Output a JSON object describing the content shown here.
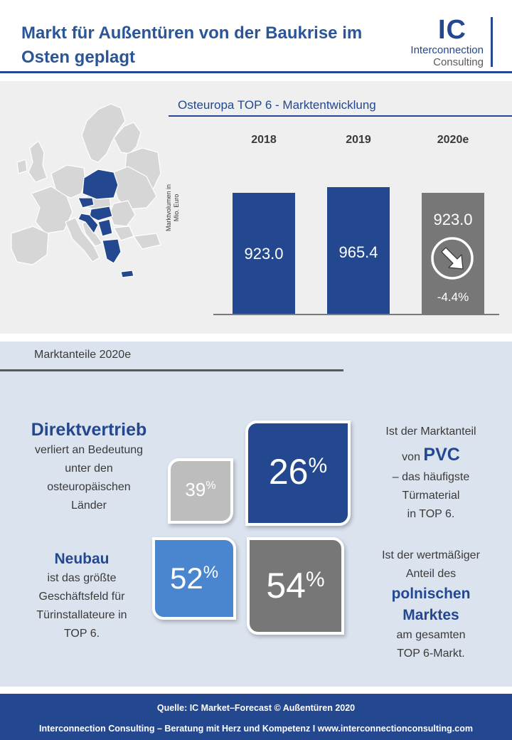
{
  "header": {
    "title": "Markt für Außentüren von der Baukrise im Osten geplagt",
    "logo_mark": "IC",
    "logo_line1": "Interconnection",
    "logo_line2": "Consulting"
  },
  "market_development": {
    "title": "Osteuropa TOP 6 - Marktentwicklung",
    "y_label": "Marktvolumen in Mio. Euro",
    "trend_icon": "arrow-down-right-icon",
    "change_label": "-4.4%"
  },
  "chart_data": {
    "type": "bar",
    "title": "Osteuropa TOP 6 - Marktentwicklung",
    "ylabel": "Marktvolumen in Mio. Euro",
    "categories": [
      "2018",
      "2019",
      "2020e"
    ],
    "values": [
      923.0,
      965.4,
      923.0
    ],
    "value_labels": [
      "923.0",
      "965.4",
      "923.0"
    ],
    "change_2020e": "-4.4%",
    "colors": [
      "#23488f",
      "#23488f",
      "#777777"
    ],
    "ylim": [
      0,
      1000
    ],
    "grid": false,
    "legend": "none"
  },
  "market_share": {
    "title": "Marktanteile 2020e",
    "tiles": [
      {
        "value": "26",
        "unit": "%",
        "color": "#23488f"
      },
      {
        "value": "39",
        "unit": "%",
        "color": "#bdbdbd"
      },
      {
        "value": "52",
        "unit": "%",
        "color": "#4a86cf"
      },
      {
        "value": "54",
        "unit": "%",
        "color": "#777777"
      }
    ],
    "direct": {
      "heading": "Direktvertrieb",
      "lines": [
        "verliert an Bedeutung",
        "unter den",
        "osteuropäischen",
        "Länder"
      ]
    },
    "pvc": {
      "line1": "Ist der Marktanteil",
      "von": "von",
      "highlight": "PVC",
      "lines": [
        "– das häufigste",
        "Türmaterial",
        "in TOP 6."
      ]
    },
    "neubau": {
      "heading": "Neubau",
      "lines": [
        "ist das größte",
        "Geschäftsfeld für",
        "Türinstallateure in",
        "TOP 6."
      ]
    },
    "poland": {
      "lines_top": [
        "Ist der wertmäßiger",
        "Anteil des"
      ],
      "highlight_1": "polnischen",
      "highlight_2": "Marktes",
      "lines_bottom": [
        "am gesamten",
        "TOP 6-Markt."
      ]
    }
  },
  "footer": {
    "source": "Quelle: IC Market–Forecast © Außentüren 2020",
    "tagline": "Interconnection Consulting – Beratung mit Herz und Kompetenz  I  www.interconnectionconsulting.com"
  },
  "map": {
    "icon": "europe-map-icon",
    "highlight_color": "#23488f",
    "base_color": "#d6d6d6"
  }
}
